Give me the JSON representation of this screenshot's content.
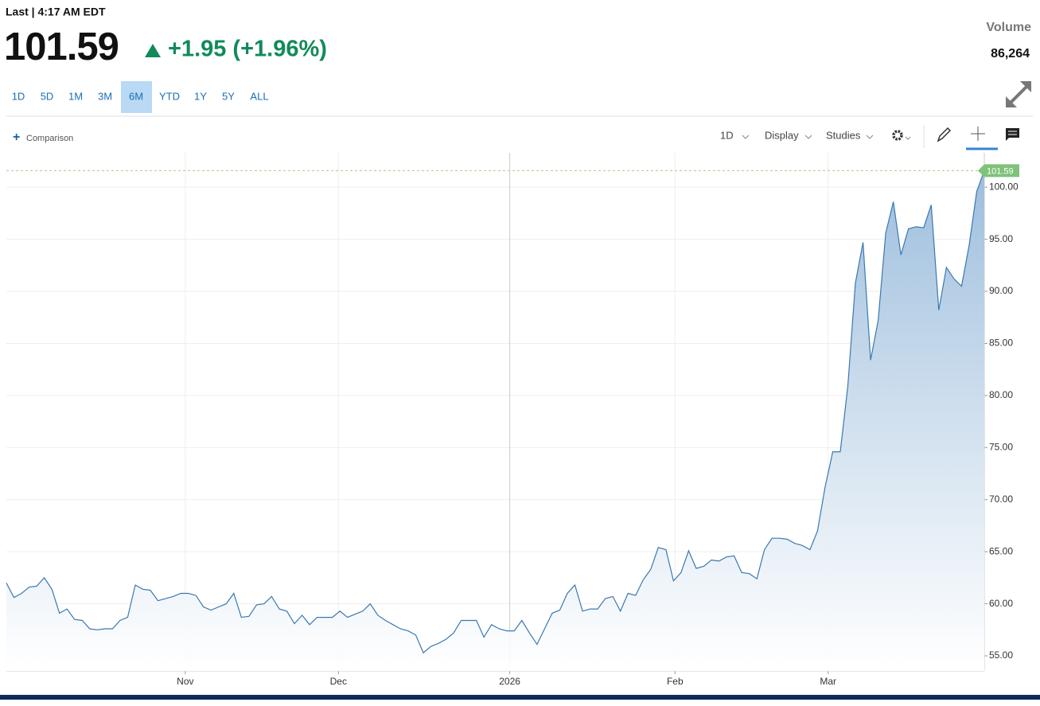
{
  "header": {
    "status": "Last | 4:17 AM EDT",
    "price": "101.59",
    "change": "+1.95 (+1.96%)",
    "volume_label": "Volume",
    "volume": "86,264"
  },
  "range_buttons": [
    "1D",
    "5D",
    "1M",
    "3M",
    "6M",
    "YTD",
    "1Y",
    "5Y",
    "ALL"
  ],
  "selected_range": "6M",
  "toolbar": {
    "comparison": "Comparison",
    "interval": "1D",
    "display": "Display",
    "studies": "Studies"
  },
  "chart_data": {
    "type": "area",
    "color": "#3b78b0",
    "values": [
      62.0,
      60.6,
      61.0,
      61.6,
      61.7,
      62.5,
      61.4,
      59.1,
      59.5,
      58.5,
      58.4,
      57.6,
      57.5,
      57.6,
      57.6,
      58.4,
      58.7,
      61.8,
      61.4,
      61.3,
      60.3,
      60.5,
      60.7,
      61.0,
      61.0,
      60.8,
      59.7,
      59.4,
      59.7,
      60.0,
      61.0,
      58.7,
      58.8,
      59.9,
      60.0,
      60.7,
      59.5,
      59.3,
      58.1,
      58.9,
      58.0,
      58.7,
      58.7,
      58.7,
      59.3,
      58.7,
      59.0,
      59.3,
      60.0,
      58.9,
      58.4,
      58.0,
      57.6,
      57.4,
      57.0,
      55.3,
      55.9,
      56.2,
      56.6,
      57.2,
      58.4,
      58.4,
      58.4,
      56.8,
      58.0,
      57.6,
      57.4,
      57.4,
      58.4,
      57.2,
      56.1,
      57.6,
      59.1,
      59.4,
      61.0,
      61.8,
      59.3,
      59.5,
      59.5,
      60.5,
      60.7,
      59.3,
      61.0,
      60.8,
      62.3,
      63.3,
      65.4,
      65.2,
      62.2,
      63.0,
      65.1,
      63.4,
      63.6,
      64.2,
      64.1,
      64.5,
      64.6,
      63.0,
      62.9,
      62.4,
      65.2,
      66.3,
      66.3,
      66.2,
      65.8,
      65.6,
      65.2,
      67.0,
      71.2,
      74.6,
      74.6,
      80.9,
      90.8,
      94.7,
      83.4,
      87.2,
      95.6,
      98.6,
      93.5,
      96.0,
      96.2,
      96.1,
      98.3,
      88.2,
      92.3,
      91.2,
      90.5,
      94.4,
      99.6,
      101.59
    ],
    "xlim": [
      0,
      129
    ],
    "xticks": [
      {
        "value": 23.6,
        "label": "Nov"
      },
      {
        "value": 43.8,
        "label": "Dec"
      },
      {
        "value": 66.4,
        "label": "2026"
      },
      {
        "value": 88.2,
        "label": "Feb"
      },
      {
        "value": 108.4,
        "label": "Mar"
      }
    ],
    "ylim": [
      53.55,
      103.3
    ],
    "yticks": [
      {
        "value": 55,
        "label": "55.00"
      },
      {
        "value": 60,
        "label": "60.00"
      },
      {
        "value": 65,
        "label": "65.00"
      },
      {
        "value": 70,
        "label": "70.00"
      },
      {
        "value": 75,
        "label": "75.00"
      },
      {
        "value": 80,
        "label": "80.00"
      },
      {
        "value": 85,
        "label": "85.00"
      },
      {
        "value": 90,
        "label": "90.00"
      },
      {
        "value": 95,
        "label": "95.00"
      },
      {
        "value": 100,
        "label": "100.00"
      }
    ],
    "grid": true
  }
}
